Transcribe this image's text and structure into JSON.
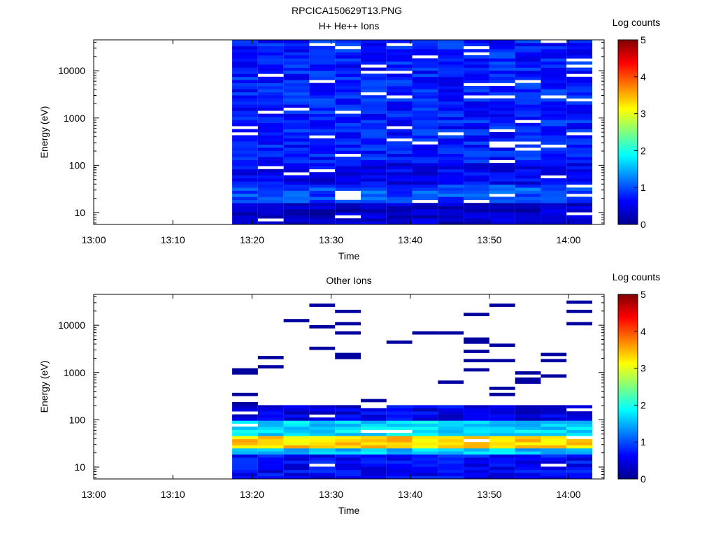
{
  "figure": {
    "title": "RPCICA150629T13.PNG"
  },
  "chart_data": [
    {
      "type": "heatmap",
      "title": "H+ He++ Ions",
      "xlabel": "Time",
      "ylabel": "Energy (eV)",
      "x_ticks": [
        "13:00",
        "13:10",
        "13:20",
        "13:30",
        "13:40",
        "13:50",
        "14:00"
      ],
      "x_range_minutes": [
        0,
        64.5
      ],
      "y_scale": "log",
      "y_ticks": [
        10,
        100,
        1000,
        10000
      ],
      "y_range": [
        5.6,
        45000
      ],
      "colorbar": {
        "label": "Log counts",
        "ticks": [
          0,
          1,
          2,
          3,
          4,
          5
        ],
        "range": [
          0,
          5
        ]
      },
      "columns_start_minutes": [
        17.5,
        20.75,
        24,
        27.25,
        30.5,
        33.75,
        37,
        40.25,
        43.5,
        46.75,
        50,
        53.25,
        56.5,
        59.75
      ],
      "column_width_minutes": 3.25,
      "profile": [
        {
          "energy_low": 5.6,
          "energy_high": 15,
          "level": 0.3
        },
        {
          "energy_low": 15,
          "energy_high": 40,
          "level": 1.0
        },
        {
          "energy_low": 40,
          "energy_high": 120,
          "level": 0.55
        },
        {
          "energy_low": 120,
          "energy_high": 45000,
          "level": 0.75
        }
      ]
    },
    {
      "type": "heatmap",
      "title": "Other Ions",
      "xlabel": "Time",
      "ylabel": "Energy (eV)",
      "x_ticks": [
        "13:00",
        "13:10",
        "13:20",
        "13:30",
        "13:40",
        "13:50",
        "14:00"
      ],
      "x_range_minutes": [
        0,
        64.5
      ],
      "y_scale": "log",
      "y_ticks": [
        10,
        100,
        1000,
        10000
      ],
      "y_range": [
        5.6,
        45000
      ],
      "colorbar": {
        "label": "Log counts",
        "ticks": [
          0,
          1,
          2,
          3,
          4,
          5
        ],
        "range": [
          0,
          5
        ]
      },
      "columns_start_minutes": [
        17.5,
        20.75,
        24,
        27.25,
        30.5,
        33.75,
        37,
        40.25,
        43.5,
        46.75,
        50,
        53.25,
        56.5,
        59.75
      ],
      "column_width_minutes": 3.25,
      "profile": [
        {
          "energy_low": 5.6,
          "energy_high": 18,
          "level": 0.6
        },
        {
          "energy_low": 18,
          "energy_high": 25,
          "level": 1.6
        },
        {
          "energy_low": 25,
          "energy_high": 45,
          "level": 3.3
        },
        {
          "energy_low": 45,
          "energy_high": 90,
          "level": 1.7
        },
        {
          "energy_low": 90,
          "energy_high": 200,
          "level": 0.5
        },
        {
          "energy_low": 200,
          "energy_high": 45000,
          "level": 0.05
        }
      ]
    }
  ]
}
